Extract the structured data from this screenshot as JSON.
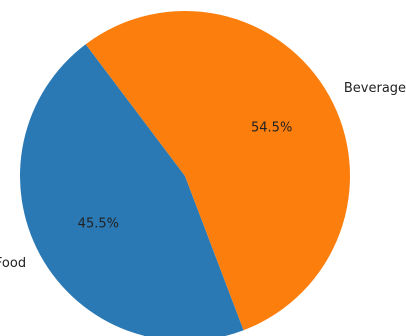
{
  "chart_data": {
    "type": "pie",
    "title": "",
    "categories": [
      "Food",
      "Beverages"
    ],
    "values": [
      45.5,
      54.5
    ],
    "percent_labels": [
      "45.5%",
      "54.5%"
    ],
    "colors": [
      "#2b79b4",
      "#fc7f0e"
    ],
    "legend": "none"
  }
}
